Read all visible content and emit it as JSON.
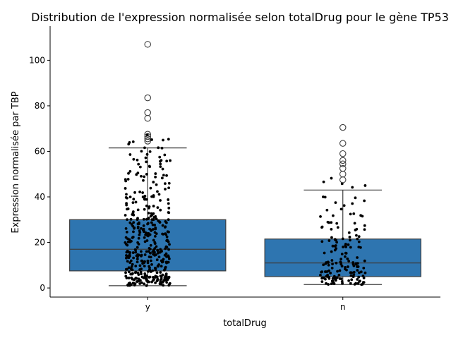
{
  "chart_data": {
    "type": "box",
    "title": "Distribution de l'expression normalisée selon totalDrug pour le gène TP53",
    "xlabel": "totalDrug",
    "ylabel": "Expression normalisée par TBP",
    "categories": [
      "y",
      "n"
    ],
    "ylim": [
      -4,
      115
    ],
    "yticks": [
      0,
      20,
      40,
      60,
      80,
      100
    ],
    "grid": false,
    "legend": "none",
    "box_color": "#2e75b0",
    "point_color": "#000000",
    "boxes": [
      {
        "category": "y",
        "whisker_low": 1,
        "q1": 7.5,
        "median": 17,
        "q3": 30,
        "whisker_high": 61.5,
        "outliers": [
          64.5,
          65.5,
          66.5,
          67.5,
          74.5,
          77,
          83.5,
          107
        ]
      },
      {
        "category": "n",
        "whisker_low": 1.5,
        "q1": 5,
        "median": 11,
        "q3": 21.5,
        "whisker_high": 43,
        "outliers": [
          47.5,
          50,
          52.5,
          54.5,
          56,
          59,
          63.5,
          70.5
        ]
      }
    ]
  }
}
